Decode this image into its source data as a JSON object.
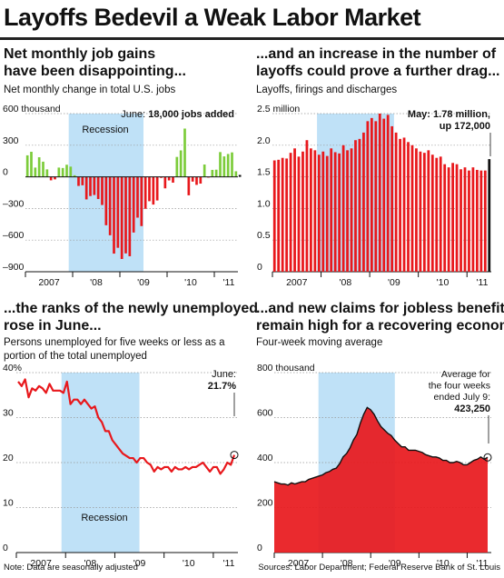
{
  "title": "Layoffs Bedevil a Weak Labor Market",
  "colors": {
    "red": "#e8181c",
    "green": "#7ccc3a",
    "dark": "#111111",
    "recession": "#bfe1f7",
    "grid": "#999999"
  },
  "footer": {
    "note": "Note: Data are seasonally adjusted",
    "sources": "Sources: Labor Department; Federal Reserve Bank of St. Louis"
  },
  "panels": [
    {
      "title_lines": [
        "Net monthly job gains",
        "have been disappointing..."
      ],
      "subtitle_lines": [
        "Net monthly change in total U.S. jobs"
      ],
      "recession_label": "Recession",
      "annotation_lines": [
        "June: ",
        "18,000 jobs added"
      ]
    },
    {
      "title_lines": [
        "...and an increase in the number of",
        "layoffs could prove a further drag..."
      ],
      "subtitle_lines": [
        "Layoffs, firings and discharges"
      ],
      "annotation_lines": [
        "May: 1.78 million,",
        "up 172,000"
      ]
    },
    {
      "title_lines": [
        "...the ranks of the newly unemployed",
        "rose in June..."
      ],
      "subtitle_lines": [
        "Persons unemployed for five weeks or less as a",
        "portion of the total unemployed"
      ],
      "recession_label": "Recession",
      "annotation_lines": [
        "June:",
        "21.7%"
      ]
    },
    {
      "title_lines": [
        "...and new claims for jobless benefits",
        "remain high for a recovering economy"
      ],
      "subtitle_lines": [
        "Four-week moving average"
      ],
      "annotation_lines": [
        "Average for",
        "the four weeks",
        "ended July 9:",
        "423,250"
      ]
    }
  ],
  "chart_data": [
    {
      "type": "bar",
      "title": "Net monthly job gains have been disappointing...",
      "subtitle": "Net monthly change in total U.S. jobs",
      "unit_label": "thousand",
      "x_start": "2007-01",
      "x_tick_labels": [
        "2007",
        "'08",
        "'09",
        "'10",
        "'11"
      ],
      "y_tick_labels": [
        "600 thousand",
        "300",
        "0",
        "–300",
        "–600",
        "–900"
      ],
      "ylim": [
        -900,
        600
      ],
      "recession": [
        "2007-12",
        "2009-06"
      ],
      "positive_color": "#7ccc3a",
      "negative_color": "#e8181c",
      "last_color": "#111111",
      "values": [
        204,
        238,
        88,
        186,
        144,
        71,
        -33,
        -24,
        88,
        84,
        115,
        97,
        15,
        -86,
        -80,
        -214,
        -182,
        -172,
        -210,
        -267,
        -459,
        -554,
        -728,
        -673,
        -779,
        -726,
        -753,
        -528,
        -387,
        -467,
        -303,
        -231,
        -263,
        -224,
        -10,
        -109,
        -34,
        -55,
        189,
        251,
        458,
        -175,
        -45,
        -76,
        -64,
        117,
        -6,
        66,
        68,
        235,
        194,
        217,
        232,
        53,
        18
      ],
      "annotation": "June: 18,000 jobs added",
      "grid": true
    },
    {
      "type": "bar",
      "title": "...and an increase in the number of layoffs could prove a further drag...",
      "subtitle": "Layoffs, firings and discharges",
      "unit_label": "million",
      "x_start": "2007-01",
      "x_tick_labels": [
        "2007",
        "'08",
        "'09",
        "'10",
        "'11"
      ],
      "y_tick_labels": [
        "2.5 million",
        "2.0",
        "1.5",
        "1.0",
        "0.5",
        "0"
      ],
      "ylim": [
        0,
        2.5
      ],
      "recession": [
        "2007-12",
        "2009-06"
      ],
      "bar_color": "#e8181c",
      "last_color": "#111111",
      "values": [
        1.76,
        1.77,
        1.8,
        1.79,
        1.88,
        1.95,
        1.82,
        1.9,
        2.08,
        1.95,
        1.92,
        1.85,
        1.9,
        1.83,
        1.95,
        1.89,
        1.87,
        2.0,
        1.92,
        1.95,
        2.08,
        2.1,
        2.2,
        2.38,
        2.43,
        2.38,
        2.5,
        2.42,
        2.48,
        2.3,
        2.2,
        2.1,
        2.12,
        2.05,
        2.0,
        1.95,
        1.9,
        1.88,
        1.92,
        1.85,
        1.8,
        1.82,
        1.7,
        1.65,
        1.72,
        1.7,
        1.62,
        1.65,
        1.6,
        1.65,
        1.61,
        1.6,
        1.6,
        1.78
      ],
      "annotation": "May: 1.78 million, up 172,000",
      "grid": true
    },
    {
      "type": "line",
      "title": "...the ranks of the newly unemployed rose in June...",
      "subtitle": "Persons unemployed for five weeks or less as a portion of the total unemployed",
      "x_start": "2007-01",
      "x_tick_labels": [
        "2007",
        "'08",
        "'09",
        "'10",
        "'11"
      ],
      "y_tick_labels": [
        "40%",
        "30",
        "20",
        "10",
        "0"
      ],
      "ylim": [
        0,
        40
      ],
      "recession": [
        "2007-12",
        "2009-06"
      ],
      "recession_label": "Recession",
      "line_color": "#e8181c",
      "values": [
        38,
        37,
        38.5,
        34.5,
        36.5,
        36,
        37,
        36.5,
        35.5,
        37.5,
        36,
        36,
        36,
        35.5,
        38,
        33,
        34,
        34,
        33,
        34,
        33,
        32,
        32.5,
        30,
        29,
        27,
        27,
        25,
        24,
        23,
        22,
        21.5,
        21,
        21,
        20,
        21,
        21,
        20,
        19.5,
        18,
        19,
        18.5,
        19,
        19,
        18,
        19,
        18.5,
        18.5,
        19,
        18.5,
        19,
        19,
        19.5,
        20,
        19,
        18,
        19,
        19,
        17.5,
        18.5,
        20,
        19.5,
        21.7
      ],
      "annotation": "June: 21.7%",
      "grid": true
    },
    {
      "type": "area",
      "title": "...and new claims for jobless benefits remain high for a recovering economy",
      "subtitle": "Four-week moving average",
      "unit_label": "thousand",
      "x_start": "2007-01",
      "x_tick_labels": [
        "2007",
        "'08",
        "'09",
        "'10",
        "'11"
      ],
      "y_tick_labels": [
        "800 thousand",
        "600",
        "400",
        "200",
        "0"
      ],
      "ylim": [
        0,
        800
      ],
      "recession": [
        "2007-12",
        "2009-06"
      ],
      "fill_color": "#e8181c",
      "values": [
        315,
        310,
        305,
        305,
        300,
        310,
        305,
        310,
        315,
        315,
        325,
        330,
        335,
        340,
        345,
        355,
        360,
        370,
        375,
        395,
        425,
        440,
        465,
        500,
        525,
        575,
        615,
        645,
        635,
        615,
        585,
        560,
        545,
        530,
        520,
        500,
        485,
        470,
        470,
        455,
        455,
        455,
        450,
        445,
        435,
        430,
        425,
        425,
        420,
        410,
        410,
        400,
        400,
        405,
        400,
        390,
        390,
        400,
        410,
        415,
        425,
        415,
        423
      ],
      "annotation": "Average for the four weeks ended July 9: 423,250",
      "grid": true
    }
  ]
}
